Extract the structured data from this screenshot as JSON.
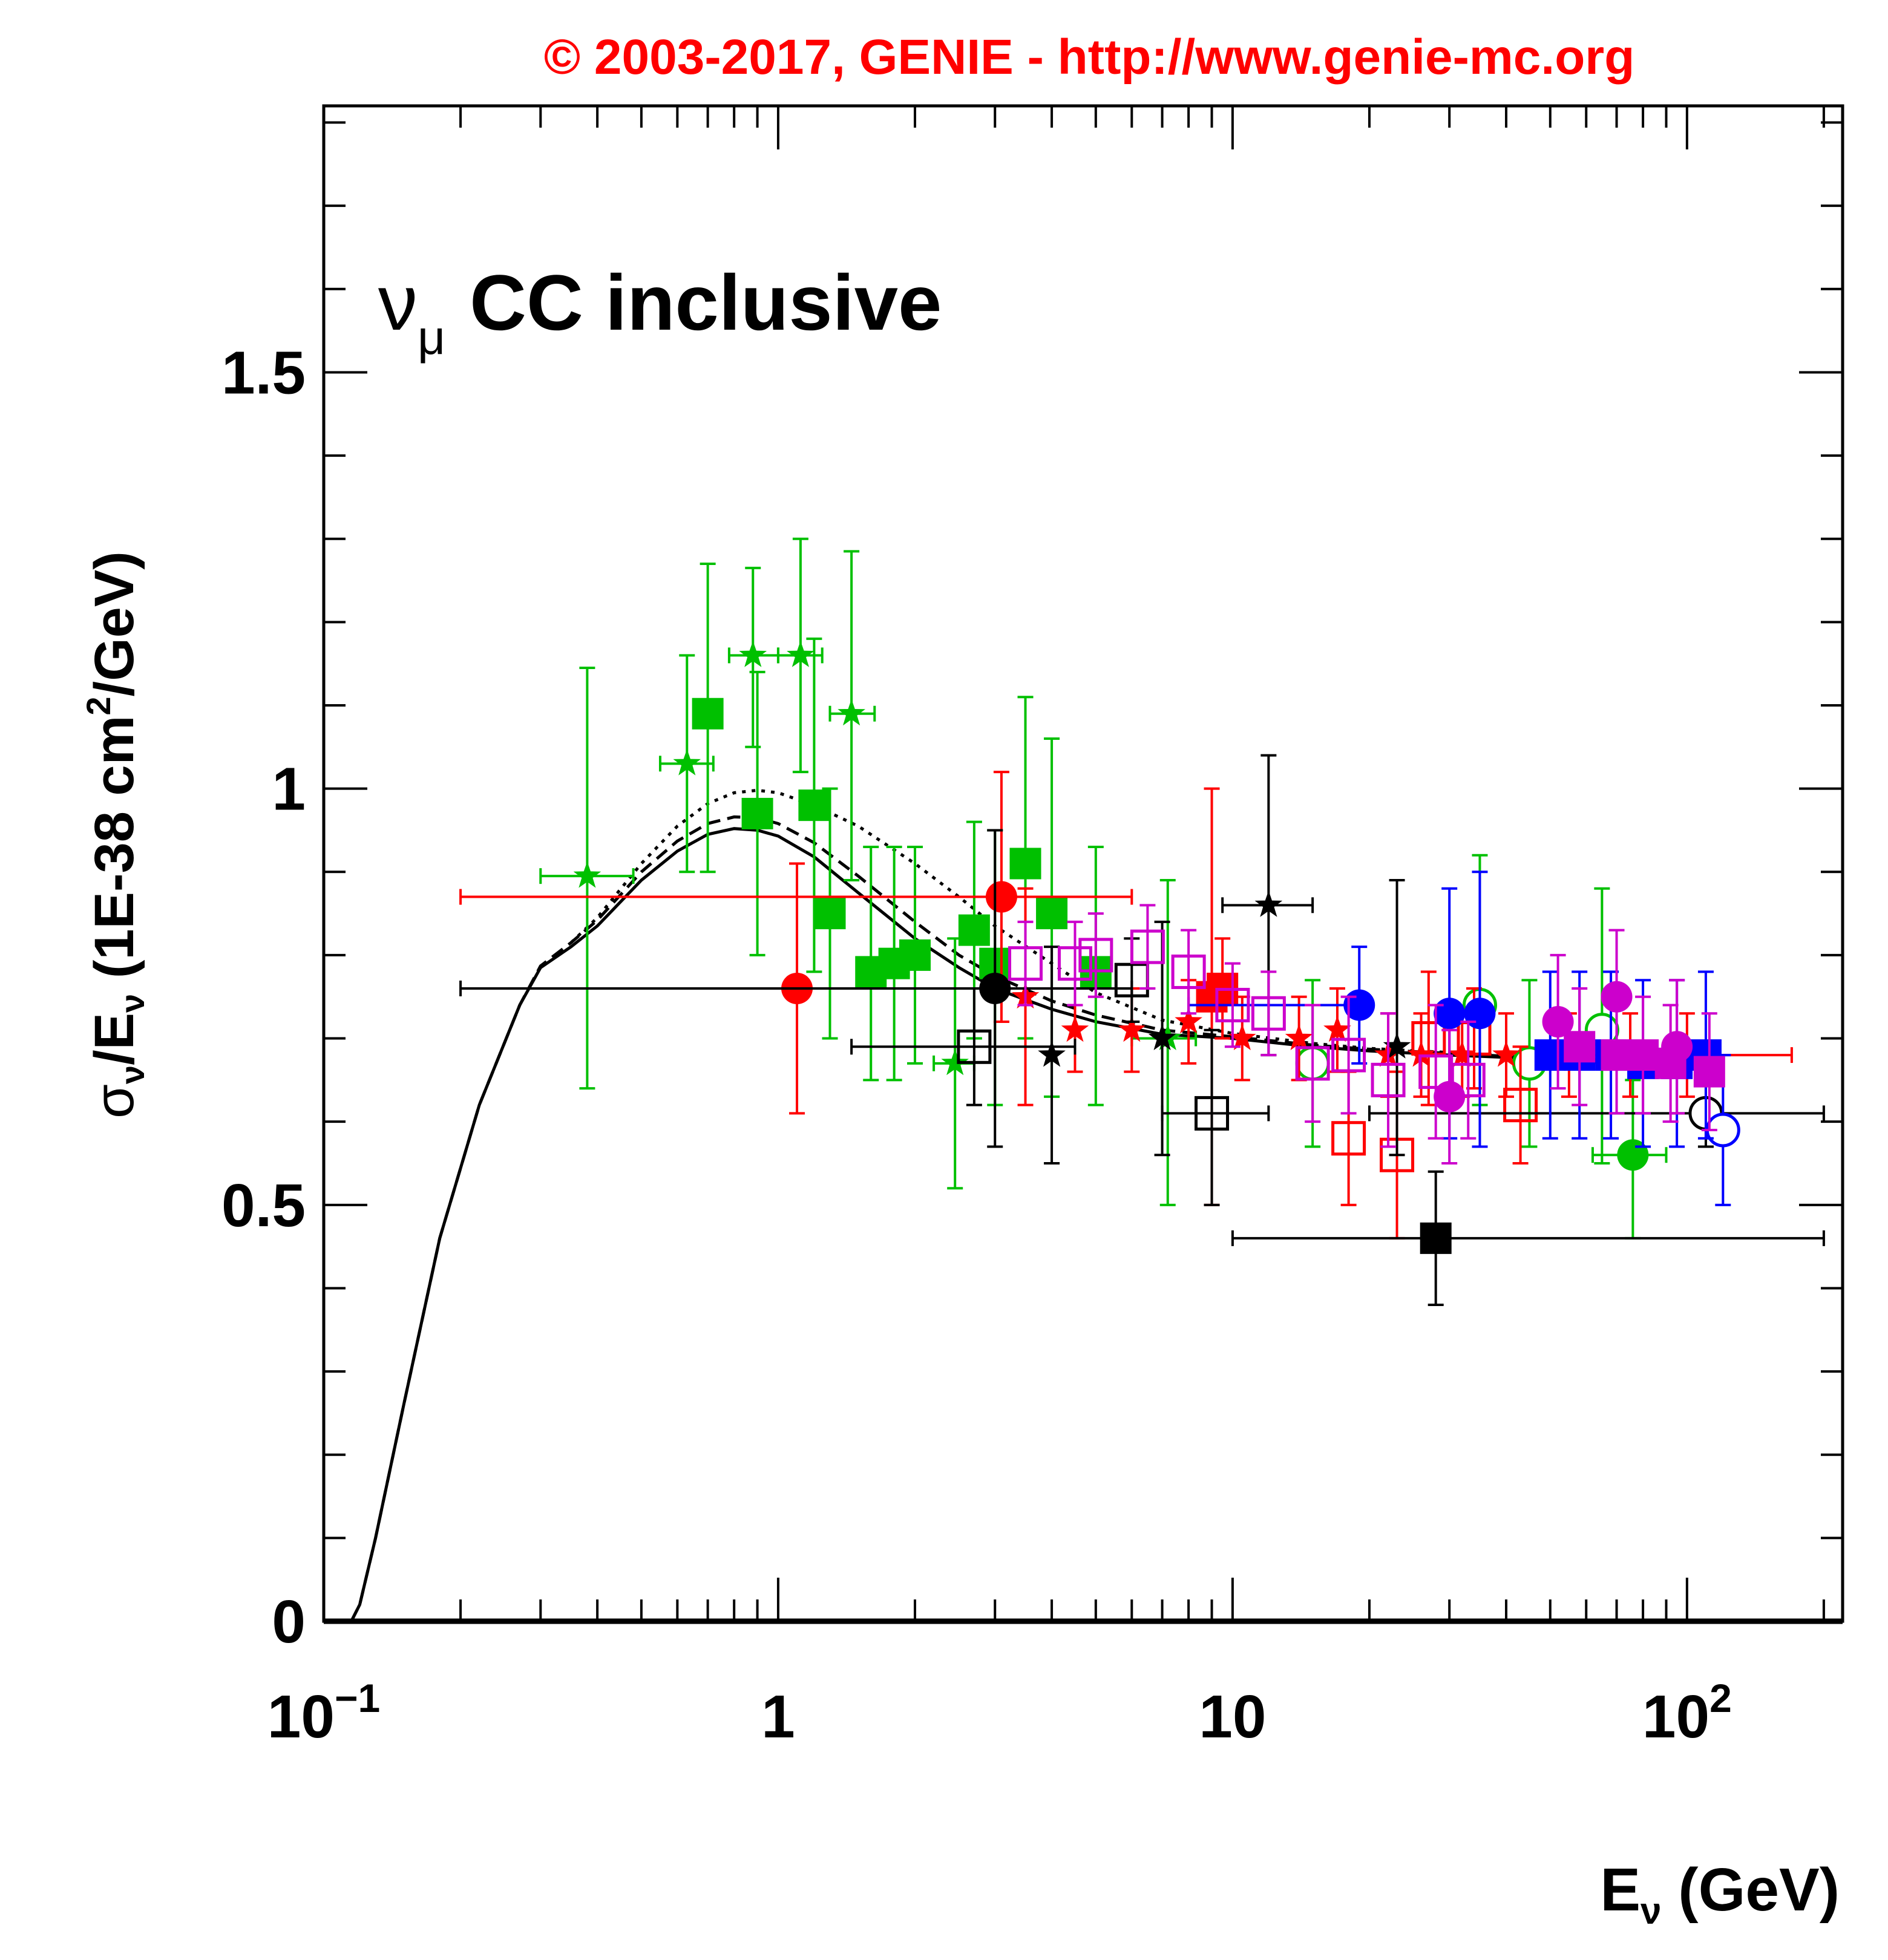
{
  "chart_data": {
    "type": "scatter",
    "title": "© 2003-2017, GENIE - http://www.genie-mc.org",
    "annotation": {
      "main": "ν",
      "sub": "μ",
      "text": "CC inclusive"
    },
    "xlabel": {
      "main": "E",
      "sub": "ν",
      "rest": " (GeV)"
    },
    "ylabel": {
      "s1": "σ",
      "s1sub": "ν",
      "s2": "/E",
      "s2sub": "ν",
      "s3": " (1E-38 cm",
      "sup": "2",
      "s4": "/GeV)"
    },
    "xscale": "log",
    "xlim": [
      0.1,
      220
    ],
    "ylim": [
      0,
      1.82
    ],
    "xticks": [
      {
        "v": 0.1,
        "base": "10",
        "exp": "−1"
      },
      {
        "v": 1,
        "base": "1",
        "exp": ""
      },
      {
        "v": 10,
        "base": "10",
        "exp": ""
      },
      {
        "v": 100,
        "base": "10",
        "exp": "2"
      }
    ],
    "yticks": [
      {
        "v": 0,
        "label": "0"
      },
      {
        "v": 0.5,
        "label": "0.5"
      },
      {
        "v": 1,
        "label": "1"
      },
      {
        "v": 1.5,
        "label": "1.5"
      }
    ],
    "colors": {
      "title": "#ff0000",
      "green": "#00c000",
      "red": "#ff0000",
      "black": "#000000",
      "blue": "#0000ff",
      "magenta": "#cc00cc"
    },
    "curves": [
      {
        "style": "solid",
        "x": [
          0.115,
          0.12,
          0.13,
          0.15,
          0.18,
          0.22,
          0.27,
          0.3,
          0.35,
          0.4,
          0.5,
          0.6,
          0.7,
          0.8,
          0.9,
          1.0,
          1.2,
          1.5,
          2,
          2.5,
          3,
          4,
          5,
          7,
          10,
          15,
          20,
          30,
          50,
          70,
          100,
          120
        ],
        "y": [
          0,
          0.02,
          0.1,
          0.26,
          0.46,
          0.62,
          0.74,
          0.785,
          0.81,
          0.835,
          0.89,
          0.925,
          0.945,
          0.952,
          0.95,
          0.943,
          0.918,
          0.875,
          0.82,
          0.785,
          0.76,
          0.735,
          0.72,
          0.705,
          0.7,
          0.69,
          0.685,
          0.68,
          0.675,
          0.67,
          0.668,
          0.667
        ]
      },
      {
        "style": "dashed",
        "x": [
          0.115,
          0.12,
          0.13,
          0.15,
          0.18,
          0.22,
          0.27,
          0.3,
          0.35,
          0.4,
          0.5,
          0.6,
          0.7,
          0.8,
          0.9,
          1.0,
          1.2,
          1.5,
          2,
          2.5,
          3,
          4,
          5,
          7,
          10,
          15,
          20,
          30,
          50,
          70,
          100,
          120
        ],
        "y": [
          0,
          0.02,
          0.1,
          0.26,
          0.46,
          0.62,
          0.74,
          0.787,
          0.815,
          0.842,
          0.9,
          0.937,
          0.958,
          0.966,
          0.965,
          0.958,
          0.935,
          0.895,
          0.84,
          0.8,
          0.775,
          0.745,
          0.728,
          0.71,
          0.702,
          0.692,
          0.687,
          0.682,
          0.676,
          0.672,
          0.669,
          0.668
        ]
      },
      {
        "style": "dotted",
        "x": [
          0.35,
          0.4,
          0.5,
          0.6,
          0.7,
          0.8,
          0.9,
          1.0,
          1.2,
          1.5,
          2,
          2.5,
          3,
          4,
          5,
          7,
          10,
          15,
          20,
          30,
          50,
          70,
          100,
          120
        ],
        "y": [
          0.815,
          0.845,
          0.91,
          0.955,
          0.982,
          0.995,
          0.998,
          0.995,
          0.98,
          0.955,
          0.91,
          0.87,
          0.835,
          0.79,
          0.755,
          0.722,
          0.706,
          0.694,
          0.688,
          0.683,
          0.677,
          0.673,
          0.67,
          0.668
        ]
      }
    ],
    "points": [
      {
        "c": "green",
        "m": "star",
        "x": 0.38,
        "y": 0.895,
        "xl": 0.3,
        "xh": 0.48,
        "yl": 0.64,
        "yh": 1.145
      },
      {
        "c": "green",
        "m": "star",
        "x": 0.63,
        "y": 1.03,
        "xl": 0.55,
        "xh": 0.72,
        "yl": 0.9,
        "yh": 1.16
      },
      {
        "c": "green",
        "m": "star",
        "x": 0.88,
        "y": 1.16,
        "xl": 0.78,
        "xh": 1.0,
        "yl": 1.05,
        "yh": 1.265
      },
      {
        "c": "green",
        "m": "star",
        "x": 1.12,
        "y": 1.16,
        "xl": 1.0,
        "xh": 1.25,
        "yl": 1.02,
        "yh": 1.3
      },
      {
        "c": "green",
        "m": "star",
        "x": 1.45,
        "y": 1.09,
        "xl": 1.3,
        "xh": 1.63,
        "yl": 0.89,
        "yh": 1.285
      },
      {
        "c": "green",
        "m": "star",
        "x": 2.45,
        "y": 0.67,
        "xl": 2.2,
        "xh": 2.7,
        "yl": 0.52,
        "yh": 0.82
      },
      {
        "c": "green",
        "m": "star",
        "x": 7.2,
        "y": 0.7,
        "xl": 6.0,
        "xh": 8.3,
        "yl": 0.5,
        "yh": 0.89
      },
      {
        "c": "green",
        "m": "sq",
        "x": 0.7,
        "y": 1.09,
        "yl": 0.9,
        "yh": 1.27
      },
      {
        "c": "green",
        "m": "sq",
        "x": 0.9,
        "y": 0.97,
        "yl": 0.8,
        "yh": 1.14
      },
      {
        "c": "green",
        "m": "sq",
        "x": 1.2,
        "y": 0.98,
        "yl": 0.78,
        "yh": 1.18
      },
      {
        "c": "green",
        "m": "sq",
        "x": 1.3,
        "y": 0.85,
        "yl": 0.7,
        "yh": 1.0
      },
      {
        "c": "green",
        "m": "sq",
        "x": 1.6,
        "y": 0.78,
        "yl": 0.65,
        "yh": 0.93
      },
      {
        "c": "green",
        "m": "sq",
        "x": 1.8,
        "y": 0.79,
        "yl": 0.65,
        "yh": 0.93
      },
      {
        "c": "green",
        "m": "sq",
        "x": 2.0,
        "y": 0.8,
        "yl": 0.67,
        "yh": 0.93
      },
      {
        "c": "green",
        "m": "sq",
        "x": 2.7,
        "y": 0.83,
        "yl": 0.7,
        "yh": 0.96
      },
      {
        "c": "green",
        "m": "sq",
        "x": 3.0,
        "y": 0.79,
        "yl": 0.62,
        "yh": 0.95
      },
      {
        "c": "green",
        "m": "sq",
        "x": 3.5,
        "y": 0.91,
        "yl": 0.7,
        "yh": 1.11
      },
      {
        "c": "green",
        "m": "sq",
        "x": 4.0,
        "y": 0.85,
        "yl": 0.63,
        "yh": 1.06
      },
      {
        "c": "green",
        "m": "sq",
        "x": 5.0,
        "y": 0.78,
        "yl": 0.62,
        "yh": 0.93
      },
      {
        "c": "green",
        "m": "circ",
        "x": 76,
        "y": 0.56,
        "xl": 62,
        "xh": 90,
        "yl": 0.46,
        "yh": 0.65
      },
      {
        "c": "green",
        "m": "ocirc",
        "x": 35,
        "y": 0.74,
        "yl": 0.62,
        "yh": 0.92
      },
      {
        "c": "green",
        "m": "ocirc",
        "x": 65,
        "y": 0.71,
        "yl": 0.55,
        "yh": 0.88
      },
      {
        "c": "green",
        "m": "ocirc",
        "x": 45,
        "y": 0.67,
        "yl": 0.57,
        "yh": 0.77
      },
      {
        "c": "green",
        "m": "ocirc",
        "x": 15,
        "y": 0.67,
        "yl": 0.57,
        "yh": 0.77
      },
      {
        "c": "red",
        "m": "circ",
        "x": 1.1,
        "y": 0.76,
        "yl": 0.61,
        "yh": 0.91
      },
      {
        "c": "red",
        "m": "circ",
        "x": 3.1,
        "y": 0.87,
        "xl": 0.2,
        "xh": 6.0,
        "yl": 0.72,
        "yh": 1.02
      },
      {
        "c": "red",
        "m": "star",
        "x": 3.5,
        "y": 0.75,
        "yl": 0.62,
        "yh": 0.88
      },
      {
        "c": "red",
        "m": "star",
        "x": 4.5,
        "y": 0.71,
        "yl": 0.66,
        "yh": 0.76
      },
      {
        "c": "red",
        "m": "star",
        "x": 6.0,
        "y": 0.71,
        "yl": 0.66,
        "yh": 0.76
      },
      {
        "c": "red",
        "m": "star",
        "x": 8.0,
        "y": 0.72,
        "yl": 0.67,
        "yh": 0.77
      },
      {
        "c": "red",
        "m": "star",
        "x": 10.5,
        "y": 0.7,
        "yl": 0.65,
        "yh": 0.75
      },
      {
        "c": "red",
        "m": "star",
        "x": 14,
        "y": 0.7,
        "yl": 0.65,
        "yh": 0.75
      },
      {
        "c": "red",
        "m": "star",
        "x": 17,
        "y": 0.71,
        "yl": 0.66,
        "yh": 0.76
      },
      {
        "c": "red",
        "m": "star",
        "x": 22,
        "y": 0.68,
        "yl": 0.63,
        "yh": 0.73
      },
      {
        "c": "red",
        "m": "star",
        "x": 26,
        "y": 0.68,
        "yl": 0.63,
        "yh": 0.73
      },
      {
        "c": "red",
        "m": "star",
        "x": 32,
        "y": 0.68,
        "yl": 0.63,
        "yh": 0.73
      },
      {
        "c": "red",
        "m": "star",
        "x": 40,
        "y": 0.68,
        "yl": 0.63,
        "yh": 0.73
      },
      {
        "c": "red",
        "m": "star",
        "x": 55,
        "y": 0.68,
        "yl": 0.63,
        "yh": 0.73
      },
      {
        "c": "red",
        "m": "star",
        "x": 75,
        "y": 0.68,
        "yl": 0.63,
        "yh": 0.73
      },
      {
        "c": "red",
        "m": "star",
        "x": 100,
        "y": 0.68,
        "yl": 0.63,
        "yh": 0.73
      },
      {
        "c": "red",
        "m": "sq",
        "x": 9.0,
        "y": 0.75,
        "yl": 0.5,
        "yh": 1.0
      },
      {
        "c": "red",
        "m": "sq",
        "x": 9.5,
        "y": 0.76,
        "yl": 0.7,
        "yh": 0.82
      },
      {
        "c": "red",
        "m": "osq",
        "x": 18,
        "y": 0.58,
        "yl": 0.5,
        "yh": 0.66
      },
      {
        "c": "red",
        "m": "osq",
        "x": 23,
        "y": 0.56,
        "yl": 0.46,
        "yh": 0.66
      },
      {
        "c": "red",
        "m": "osq",
        "x": 27,
        "y": 0.7,
        "yl": 0.62,
        "yh": 0.78
      },
      {
        "c": "red",
        "m": "osq",
        "x": 34,
        "y": 0.7,
        "yl": 0.64,
        "yh": 0.76
      },
      {
        "c": "red",
        "m": "osq",
        "x": 43,
        "y": 0.62,
        "yl": 0.55,
        "yh": 0.69
      },
      {
        "c": "red",
        "m": "line",
        "x": 100,
        "y": 0.68,
        "xl": 60,
        "xh": 170,
        "yl": 0.68,
        "yh": 0.68
      },
      {
        "c": "black",
        "m": "circ",
        "x": 3.0,
        "y": 0.76,
        "xl": 0.2,
        "xh": 6.0,
        "yl": 0.57,
        "yh": 0.95
      },
      {
        "c": "black",
        "m": "star",
        "x": 4.0,
        "y": 0.68,
        "yl": 0.55,
        "yh": 0.81
      },
      {
        "c": "black",
        "m": "star",
        "x": 7.0,
        "y": 0.7,
        "yl": 0.56,
        "yh": 0.84
      },
      {
        "c": "black",
        "m": "star",
        "x": 12.0,
        "y": 0.86,
        "xl": 9.5,
        "xh": 15,
        "yl": 0.68,
        "yh": 1.04
      },
      {
        "c": "black",
        "m": "star",
        "x": 23,
        "y": 0.69,
        "yl": 0.56,
        "yh": 0.89
      },
      {
        "c": "black",
        "m": "osq",
        "x": 2.7,
        "y": 0.69,
        "xl": 1.45,
        "xh": 4.5,
        "yl": 0.62,
        "yh": 0.76
      },
      {
        "c": "black",
        "m": "osq",
        "x": 9.0,
        "y": 0.61,
        "xl": 7.0,
        "xh": 12,
        "yl": 0.5,
        "yh": 0.71
      },
      {
        "c": "black",
        "m": "osq",
        "x": 6.0,
        "y": 0.77,
        "yl": 0.72,
        "yh": 0.82
      },
      {
        "c": "black",
        "m": "sq",
        "x": 28,
        "y": 0.46,
        "xl": 10,
        "xh": 200,
        "yl": 0.38,
        "yh": 0.54
      },
      {
        "c": "black",
        "m": "ocirc",
        "x": 110,
        "y": 0.61,
        "xl": 20,
        "xh": 200,
        "yl": 0.57,
        "yh": 0.66
      },
      {
        "c": "blue",
        "m": "circ",
        "x": 19,
        "y": 0.74,
        "yl": 0.67,
        "yh": 0.81
      },
      {
        "c": "blue",
        "m": "circ",
        "x": 30,
        "y": 0.73,
        "yl": 0.58,
        "yh": 0.88
      },
      {
        "c": "blue",
        "m": "circ",
        "x": 35,
        "y": 0.73,
        "yl": 0.57,
        "yh": 0.9
      },
      {
        "c": "blue",
        "m": "ocirc",
        "x": 120,
        "y": 0.59,
        "yl": 0.5,
        "yh": 0.68
      },
      {
        "c": "blue",
        "m": "sq",
        "x": 50,
        "y": 0.68,
        "yl": 0.58,
        "yh": 0.78
      },
      {
        "c": "blue",
        "m": "sq",
        "x": 58,
        "y": 0.68,
        "yl": 0.58,
        "yh": 0.78
      },
      {
        "c": "blue",
        "m": "sq",
        "x": 68,
        "y": 0.68,
        "yl": 0.58,
        "yh": 0.78
      },
      {
        "c": "blue",
        "m": "sq",
        "x": 80,
        "y": 0.67,
        "yl": 0.57,
        "yh": 0.77
      },
      {
        "c": "blue",
        "m": "sq",
        "x": 95,
        "y": 0.67,
        "yl": 0.57,
        "yh": 0.77
      },
      {
        "c": "blue",
        "m": "sq",
        "x": 110,
        "y": 0.68,
        "yl": 0.58,
        "yh": 0.78
      },
      {
        "c": "blue",
        "m": "line",
        "x": 14,
        "y": 0.74,
        "xl": 8,
        "xh": 20,
        "yl": 0.74,
        "yh": 0.74
      },
      {
        "c": "magenta",
        "m": "osq",
        "x": 3.5,
        "y": 0.79,
        "yl": 0.74,
        "yh": 0.84
      },
      {
        "c": "magenta",
        "m": "osq",
        "x": 4.5,
        "y": 0.79,
        "yl": 0.74,
        "yh": 0.84
      },
      {
        "c": "magenta",
        "m": "osq",
        "x": 5.0,
        "y": 0.8,
        "yl": 0.75,
        "yh": 0.85
      },
      {
        "c": "magenta",
        "m": "osq",
        "x": 6.5,
        "y": 0.81,
        "yl": 0.76,
        "yh": 0.86
      },
      {
        "c": "magenta",
        "m": "osq",
        "x": 8.0,
        "y": 0.78,
        "yl": 0.73,
        "yh": 0.83
      },
      {
        "c": "magenta",
        "m": "osq",
        "x": 10.0,
        "y": 0.74,
        "yl": 0.69,
        "yh": 0.79
      },
      {
        "c": "magenta",
        "m": "osq",
        "x": 12.0,
        "y": 0.73,
        "yl": 0.68,
        "yh": 0.78
      },
      {
        "c": "magenta",
        "m": "osq",
        "x": 15.0,
        "y": 0.67,
        "yl": 0.6,
        "yh": 0.74
      },
      {
        "c": "magenta",
        "m": "osq",
        "x": 18.0,
        "y": 0.68,
        "yl": 0.61,
        "yh": 0.75
      },
      {
        "c": "magenta",
        "m": "osq",
        "x": 22.0,
        "y": 0.65,
        "yl": 0.57,
        "yh": 0.73
      },
      {
        "c": "magenta",
        "m": "osq",
        "x": 28.0,
        "y": 0.66,
        "yl": 0.58,
        "yh": 0.74
      },
      {
        "c": "magenta",
        "m": "osq",
        "x": 33.0,
        "y": 0.65,
        "yl": 0.58,
        "yh": 0.72
      },
      {
        "c": "magenta",
        "m": "circ",
        "x": 30,
        "y": 0.63,
        "yl": 0.55,
        "yh": 0.71
      },
      {
        "c": "magenta",
        "m": "circ",
        "x": 52,
        "y": 0.72,
        "yl": 0.64,
        "yh": 0.8
      },
      {
        "c": "magenta",
        "m": "circ",
        "x": 70,
        "y": 0.75,
        "yl": 0.67,
        "yh": 0.83
      },
      {
        "c": "magenta",
        "m": "circ",
        "x": 95,
        "y": 0.69,
        "yl": 0.61,
        "yh": 0.77
      },
      {
        "c": "magenta",
        "m": "sq",
        "x": 58,
        "y": 0.69,
        "yl": 0.62,
        "yh": 0.76
      },
      {
        "c": "magenta",
        "m": "sq",
        "x": 70,
        "y": 0.68,
        "yl": 0.61,
        "yh": 0.75
      },
      {
        "c": "magenta",
        "m": "sq",
        "x": 80,
        "y": 0.68,
        "yl": 0.61,
        "yh": 0.75
      },
      {
        "c": "magenta",
        "m": "sq",
        "x": 92,
        "y": 0.67,
        "yl": 0.6,
        "yh": 0.74
      },
      {
        "c": "magenta",
        "m": "sq",
        "x": 112,
        "y": 0.66,
        "yl": 0.59,
        "yh": 0.73
      }
    ]
  }
}
